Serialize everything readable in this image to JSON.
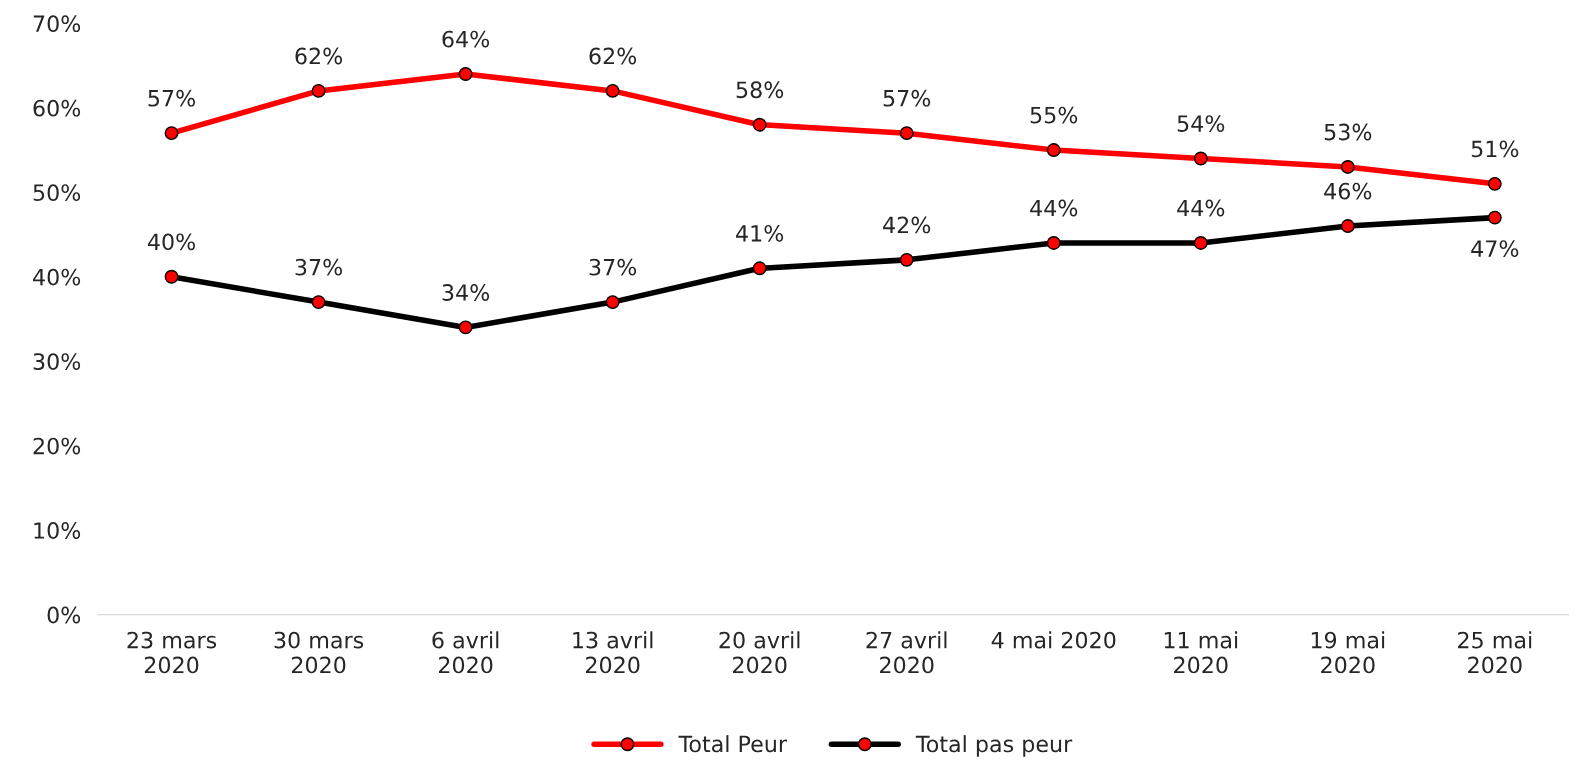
{
  "chart_data": {
    "type": "line",
    "categories": [
      "23 mars\n2020",
      "30 mars\n2020",
      "6 avril\n2020",
      "13 avril\n2020",
      "20 avril\n2020",
      "27 avril\n2020",
      "4 mai 2020",
      "11 mai\n2020",
      "19 mai\n2020",
      "25 mai\n2020"
    ],
    "series": [
      {
        "name": "Total Peur",
        "color": "#ff0000",
        "values": [
          57,
          62,
          64,
          62,
          58,
          57,
          55,
          54,
          53,
          51
        ],
        "value_labels": [
          "57%",
          "62%",
          "64%",
          "62%",
          "58%",
          "57%",
          "55%",
          "54%",
          "53%",
          "51%"
        ]
      },
      {
        "name": "Total pas peur",
        "color": "#000000",
        "values": [
          40,
          37,
          34,
          37,
          41,
          42,
          44,
          44,
          46,
          47
        ],
        "value_labels": [
          "40%",
          "37%",
          "34%",
          "37%",
          "41%",
          "42%",
          "44%",
          "44%",
          "46%",
          "47%"
        ]
      }
    ],
    "ylim": [
      0,
      70
    ],
    "yticks": [
      {
        "value": 0,
        "label": "0%"
      },
      {
        "value": 10,
        "label": "10%"
      },
      {
        "value": 20,
        "label": "20%"
      },
      {
        "value": 30,
        "label": "30%"
      },
      {
        "value": 40,
        "label": "40%"
      },
      {
        "value": 50,
        "label": "50%"
      },
      {
        "value": 60,
        "label": "60%"
      },
      {
        "value": 70,
        "label": "70%"
      }
    ],
    "grid": false,
    "legend": "bottom",
    "marker": "circle",
    "line_style": "solid"
  }
}
